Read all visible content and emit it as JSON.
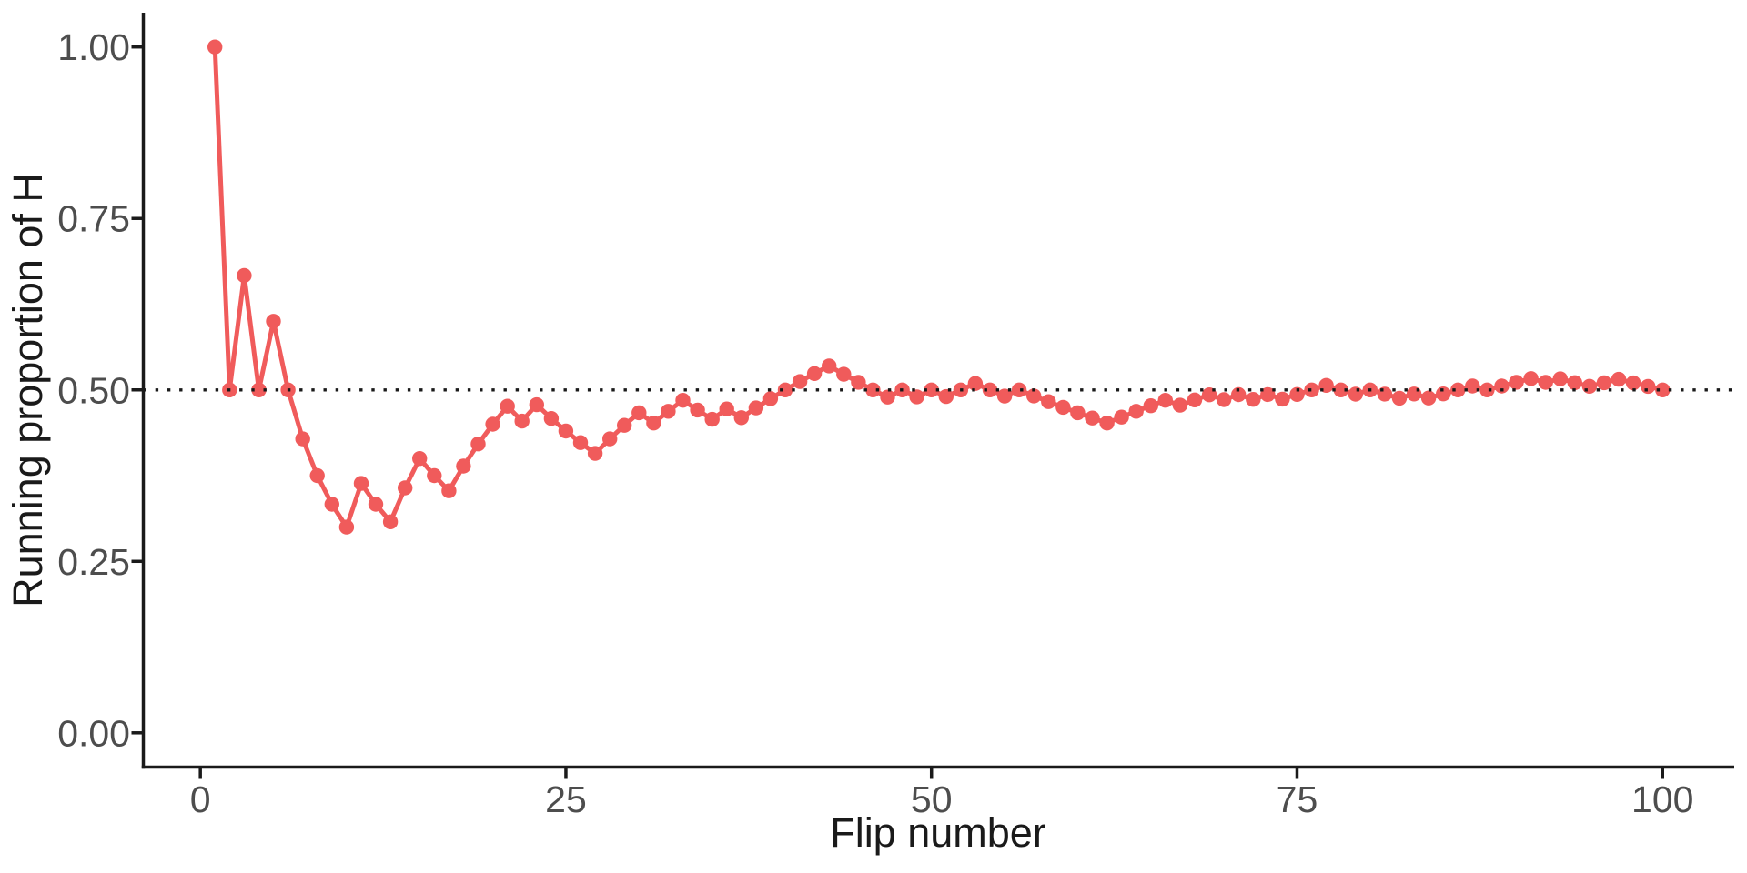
{
  "chart_data": {
    "type": "line",
    "title": "",
    "xlabel": "Flip number",
    "ylabel": "Running proportion of H",
    "legend": "none",
    "grid": false,
    "x": [
      1,
      2,
      3,
      4,
      5,
      6,
      7,
      8,
      9,
      10,
      11,
      12,
      13,
      14,
      15,
      16,
      17,
      18,
      19,
      20,
      21,
      22,
      23,
      24,
      25,
      26,
      27,
      28,
      29,
      30,
      31,
      32,
      33,
      34,
      35,
      36,
      37,
      38,
      39,
      40,
      41,
      42,
      43,
      44,
      45,
      46,
      47,
      48,
      49,
      50,
      51,
      52,
      53,
      54,
      55,
      56,
      57,
      58,
      59,
      60,
      61,
      62,
      63,
      64,
      65,
      66,
      67,
      68,
      69,
      70,
      71,
      72,
      73,
      74,
      75,
      76,
      77,
      78,
      79,
      80,
      81,
      82,
      83,
      84,
      85,
      86,
      87,
      88,
      89,
      90,
      91,
      92,
      93,
      94,
      95,
      96,
      97,
      98,
      99,
      100
    ],
    "y": [
      1.0,
      0.5,
      0.6667,
      0.5,
      0.6,
      0.5,
      0.4286,
      0.375,
      0.3333,
      0.3,
      0.3636,
      0.3333,
      0.3077,
      0.3571,
      0.4,
      0.375,
      0.3529,
      0.3889,
      0.4211,
      0.45,
      0.4762,
      0.4545,
      0.4783,
      0.4583,
      0.44,
      0.4231,
      0.4074,
      0.4286,
      0.4483,
      0.4667,
      0.4516,
      0.4688,
      0.4848,
      0.4706,
      0.4571,
      0.4722,
      0.4595,
      0.4737,
      0.4872,
      0.5,
      0.5122,
      0.5238,
      0.5349,
      0.5227,
      0.5111,
      0.5,
      0.4894,
      0.5,
      0.4898,
      0.5,
      0.4902,
      0.5,
      0.5094,
      0.5,
      0.4909,
      0.5,
      0.4912,
      0.4828,
      0.4746,
      0.4667,
      0.459,
      0.4516,
      0.4603,
      0.4688,
      0.4769,
      0.4848,
      0.4776,
      0.4853,
      0.4928,
      0.4857,
      0.493,
      0.4861,
      0.4932,
      0.4865,
      0.4933,
      0.5,
      0.5065,
      0.5,
      0.4937,
      0.5,
      0.4938,
      0.4878,
      0.494,
      0.4881,
      0.4941,
      0.5,
      0.5057,
      0.5,
      0.5056,
      0.5111,
      0.5165,
      0.5109,
      0.5161,
      0.5106,
      0.5053,
      0.5104,
      0.5155,
      0.5102,
      0.5051,
      0.5
    ],
    "outcomes": "HTHTHTTTTTHTTHHTTHHHHTHTTTTHHHTHHTTHTHHHHHHTTTTHTHTHHTTHTTTTTTHHHHTHHTHTHTHHHTTHTTHTHHHTHHHTHTTHHTTT",
    "series_name": "running proportion of heads",
    "reference_line_y": 0.5,
    "reference_line_style": "dotted",
    "x_ticks": [
      0,
      25,
      50,
      75,
      100
    ],
    "x_tick_labels": [
      "0",
      "25",
      "50",
      "75",
      "100"
    ],
    "y_ticks": [
      0.0,
      0.25,
      0.5,
      0.75,
      1.0
    ],
    "y_tick_labels": [
      "0.00",
      "0.25",
      "0.50",
      "0.75",
      "1.00"
    ],
    "xlim": [
      -3.9,
      104.9
    ],
    "ylim": [
      -0.05,
      1.05
    ],
    "colors": {
      "series": "#F05B5B",
      "reference_line": "#1a1a1a",
      "axis_line": "#1a1a1a",
      "tick_label": "#4d4d4d",
      "axis_title": "#1a1a1a",
      "background": "#ffffff"
    }
  }
}
